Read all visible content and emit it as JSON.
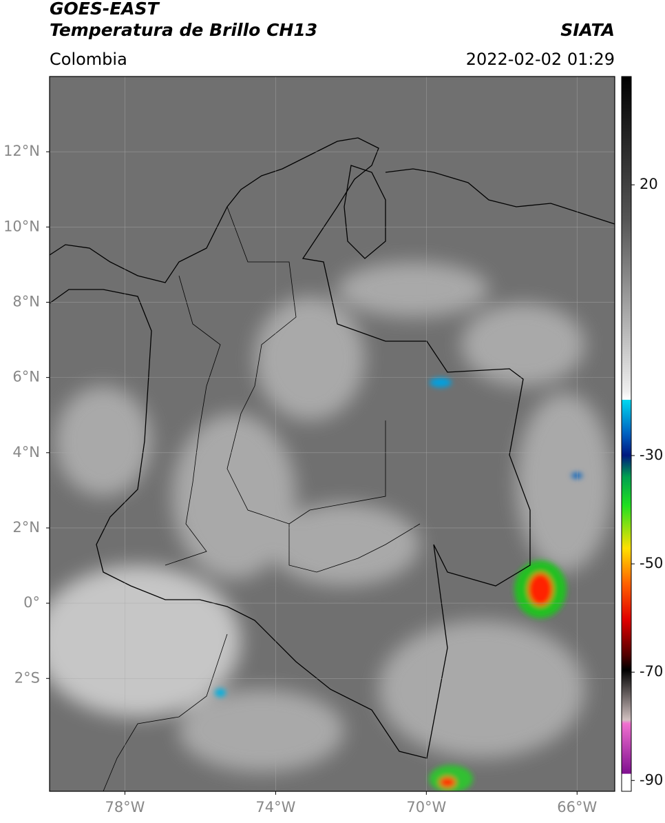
{
  "header": {
    "title": "GOES-EAST",
    "subtitle": "Temperatura de Brillo CH13",
    "source": "SIATA",
    "region": "Colombia",
    "timestamp": "2022-02-02 01:29"
  },
  "map": {
    "xlim": [
      -80,
      -65
    ],
    "ylim": [
      -5,
      14
    ],
    "xticks": [
      {
        "value": -78,
        "label": "78°W"
      },
      {
        "value": -74,
        "label": "74°W"
      },
      {
        "value": -70,
        "label": "70°W"
      },
      {
        "value": -66,
        "label": "66°W"
      }
    ],
    "yticks": [
      {
        "value": 12,
        "label": "12°N"
      },
      {
        "value": 10,
        "label": "10°N"
      },
      {
        "value": 8,
        "label": "8°N"
      },
      {
        "value": 6,
        "label": "6°N"
      },
      {
        "value": 4,
        "label": "4°N"
      },
      {
        "value": 2,
        "label": "2°N"
      },
      {
        "value": 0,
        "label": "0°"
      },
      {
        "value": -2,
        "label": "2°S"
      }
    ],
    "grid": true
  },
  "colorbar": {
    "lim": [
      40,
      -92
    ],
    "ticks": [
      20,
      -30,
      -50,
      -70,
      -90
    ]
  }
}
